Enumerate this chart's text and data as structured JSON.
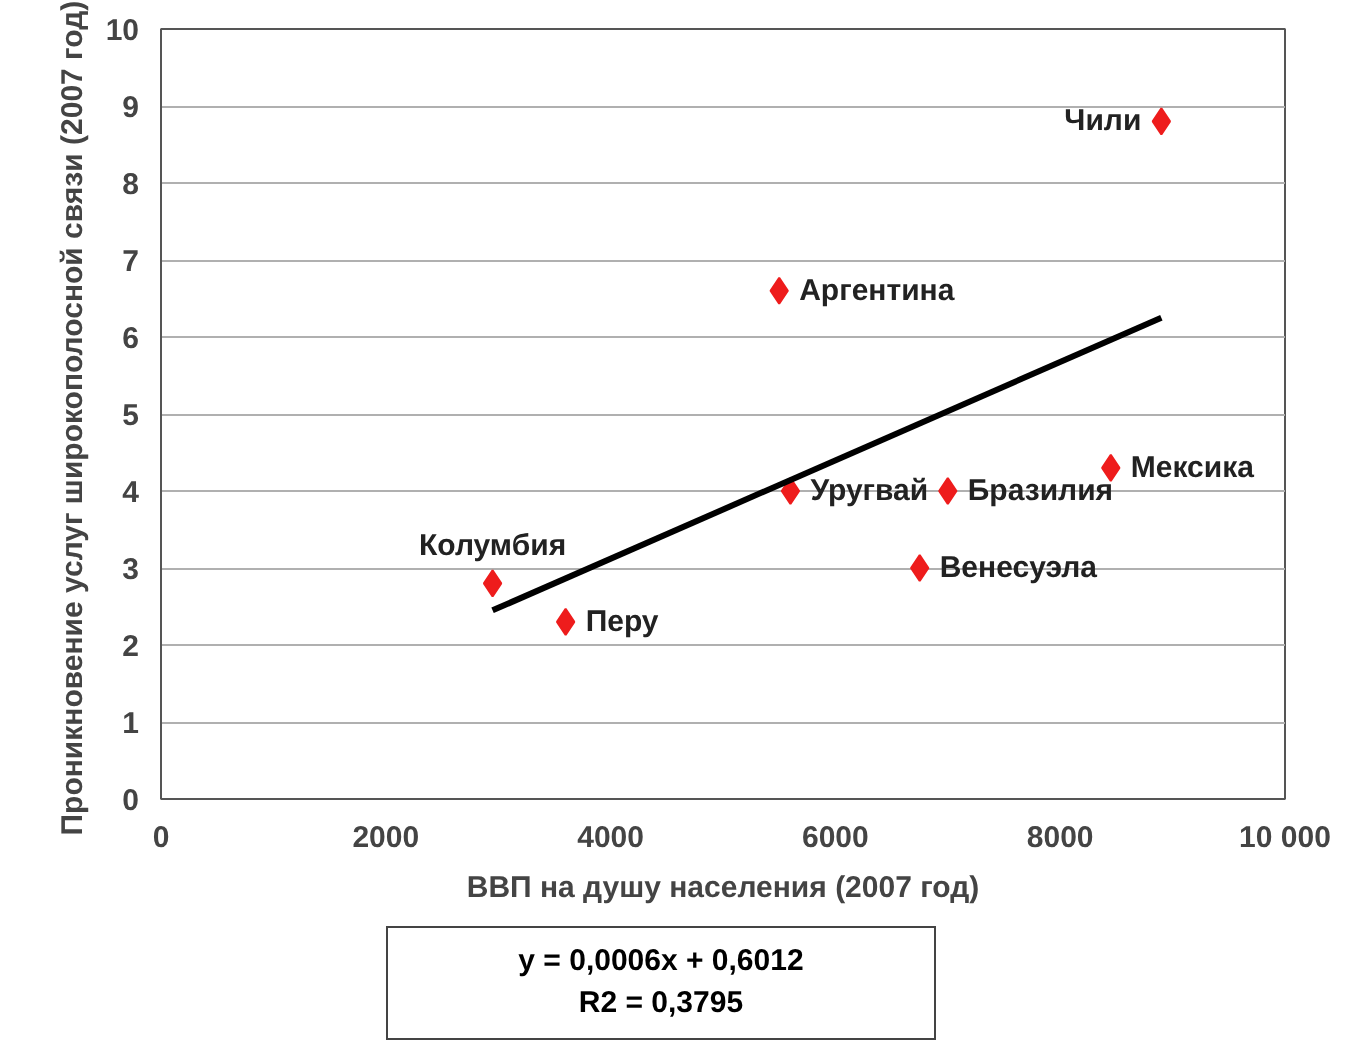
{
  "chart_data": {
    "type": "scatter",
    "xlabel": "ВВП на душу населения (2007 год)",
    "ylabel": "Проникновение услуг широкополосной связи  (2007 год)",
    "x": [
      8900,
      5500,
      5600,
      7000,
      8450,
      6750,
      2950,
      3600
    ],
    "series": [
      {
        "color": "#ee1c1c",
        "marker": "diamond",
        "values": [
          8.8,
          6.6,
          4.0,
          4.0,
          4.3,
          3.0,
          2.8,
          2.3
        ]
      },
      {
        "type": "line",
        "color": "#000000",
        "x": [
          2950,
          8900
        ],
        "values": [
          2.45,
          6.25
        ]
      }
    ],
    "xlim": [
      0,
      10000
    ],
    "ylim": [
      0,
      10
    ],
    "xticks": [
      0,
      2000,
      4000,
      6000,
      8000,
      {
        "value": 10000,
        "label": "10 000"
      }
    ],
    "yticks": [
      0,
      1,
      2,
      3,
      4,
      5,
      6,
      7,
      8,
      9,
      10
    ],
    "grid": "y",
    "annotations": [
      {
        "text": "Чили",
        "x": 8900,
        "y": 8.8
      },
      {
        "text": "Аргентина",
        "x": 5500,
        "y": 6.6
      },
      {
        "text": "Уругвай",
        "x": 5600,
        "y": 4.0
      },
      {
        "text": "Бразилия",
        "x": 7000,
        "y": 4.0
      },
      {
        "text": "Мексика",
        "x": 8450,
        "y": 4.3
      },
      {
        "text": "Венесуэла",
        "x": 6750,
        "y": 3.0
      },
      {
        "text": "Колумбия",
        "x": 2950,
        "y": 2.8
      },
      {
        "text": "Перу",
        "x": 3600,
        "y": 2.3
      },
      "y = 0,0006x + 0,6012",
      "R2 = 0,3795"
    ]
  }
}
